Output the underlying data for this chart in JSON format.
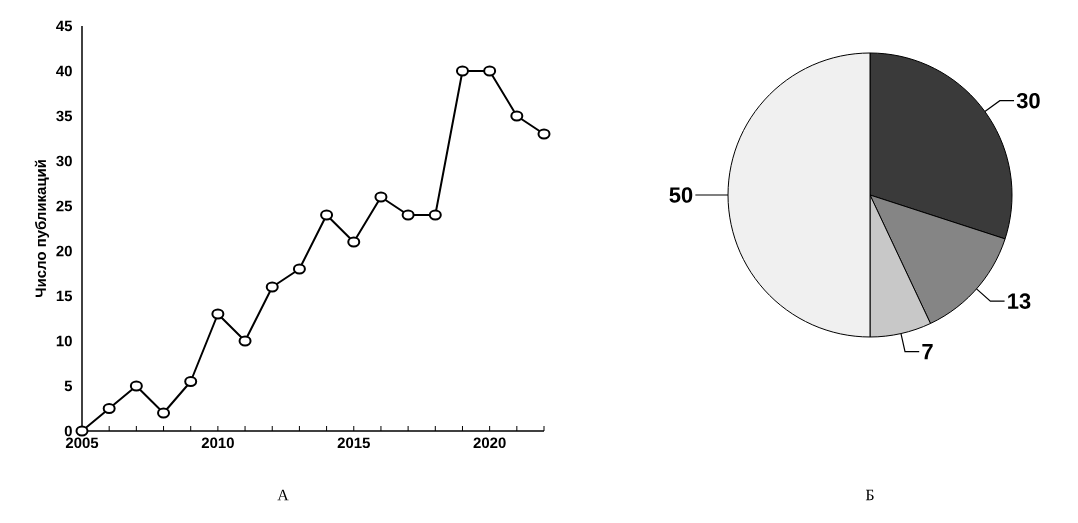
{
  "chart_data": [
    {
      "type": "line",
      "ylabel": "Число публикаций",
      "x": [
        2005,
        2006,
        2007,
        2008,
        2009,
        2010,
        2011,
        2012,
        2013,
        2014,
        2015,
        2016,
        2017,
        2018,
        2019,
        2020,
        2021,
        2022
      ],
      "series": [
        {
          "color": "#000000",
          "values": [
            0,
            2.5,
            5,
            2,
            5.5,
            13,
            10,
            16,
            18,
            24,
            21,
            26,
            24,
            24,
            40,
            40,
            35,
            33
          ]
        }
      ],
      "xlim": [
        2005,
        2022
      ],
      "ylim": [
        0,
        45
      ],
      "xticks": [
        2005,
        {
          "value": 2006,
          "label": null
        },
        {
          "value": 2007,
          "label": null
        },
        {
          "value": 2008,
          "label": null
        },
        {
          "value": 2009,
          "label": null
        },
        2010,
        {
          "value": 2011,
          "label": null
        },
        {
          "value": 2012,
          "label": null
        },
        {
          "value": 2013,
          "label": null
        },
        {
          "value": 2014,
          "label": null
        },
        2015,
        {
          "value": 2016,
          "label": null
        },
        {
          "value": 2017,
          "label": null
        },
        {
          "value": 2018,
          "label": null
        },
        {
          "value": 2019,
          "label": null
        },
        2020,
        {
          "value": 2021,
          "label": null
        },
        {
          "value": 2022,
          "label": null
        }
      ],
      "yticks": [
        0,
        5,
        10,
        15,
        20,
        25,
        30,
        35,
        40,
        45
      ],
      "marker": "circle",
      "line_style": "solid",
      "grid": false,
      "annotations": [
        "А"
      ]
    },
    {
      "type": "pie",
      "categories": [
        null,
        null,
        null,
        null
      ],
      "values": [
        30,
        13,
        7,
        50
      ],
      "colors": [
        "#3a3a3a",
        "#858585",
        "#c8c8c8",
        "#f0f0f0"
      ],
      "data_labels": true,
      "annotations": [
        "Б"
      ]
    }
  ]
}
